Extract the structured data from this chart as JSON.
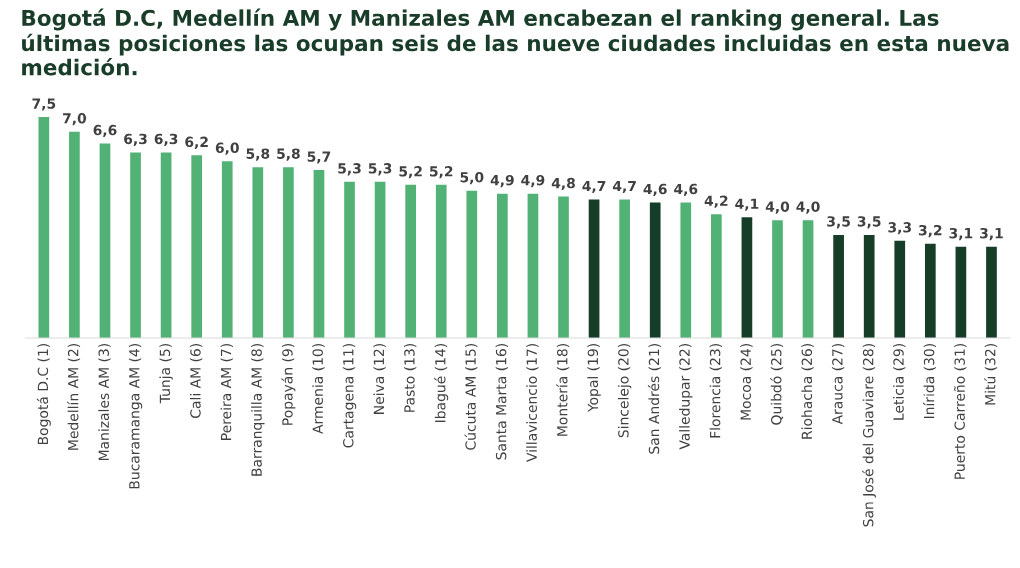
{
  "chart_data": {
    "type": "bar",
    "title": "Bogotá D.C, Medellín AM y Manizales AM encabezan el ranking general. Las últimas posiciones las ocupan seis de las nueve ciudades incluidas en esta nueva medición.",
    "categories": [
      "Bogotá D.C (1)",
      "Medellín AM (2)",
      "Manizales AM (3)",
      "Bucaramanga AM (4)",
      "Tunja (5)",
      "Cali AM (6)",
      "Pereira AM (7)",
      "Barranquilla AM (8)",
      "Popayán (9)",
      "Armenia (10)",
      "Cartagena (11)",
      "Neiva (12)",
      "Pasto (13)",
      "Ibagué (14)",
      "Cúcuta AM (15)",
      "Santa Marta (16)",
      "Villavicencio (17)",
      "Montería (18)",
      "Yopal (19)",
      "Sincelejo (20)",
      "San Andrés (21)",
      "Valledupar (22)",
      "Florencia (23)",
      "Mocoa (24)",
      "Quibdó (25)",
      "Riohacha (26)",
      "Arauca (27)",
      "San José del Guaviare (28)",
      "Leticia (29)",
      "Inírida (30)",
      "Puerto Carreño (31)",
      "Mitú (32)"
    ],
    "values": [
      7.5,
      7.0,
      6.6,
      6.3,
      6.3,
      6.2,
      6.0,
      5.8,
      5.8,
      5.7,
      5.3,
      5.3,
      5.2,
      5.2,
      5.0,
      4.9,
      4.9,
      4.8,
      4.7,
      4.7,
      4.6,
      4.6,
      4.2,
      4.1,
      4.0,
      4.0,
      3.5,
      3.5,
      3.3,
      3.2,
      3.1,
      3.1
    ],
    "value_labels": [
      "7,5",
      "7,0",
      "6,6",
      "6,3",
      "6,3",
      "6,2",
      "6,0",
      "5,8",
      "5,8",
      "5,7",
      "5,3",
      "5,3",
      "5,2",
      "5,2",
      "5,0",
      "4,9",
      "4,9",
      "4,8",
      "4,7",
      "4,7",
      "4,6",
      "4,6",
      "4,2",
      "4,1",
      "4,0",
      "4,0",
      "3,5",
      "3,5",
      "3,3",
      "3,2",
      "3,1",
      "3,1"
    ],
    "colors": [
      "#52b276",
      "#52b276",
      "#52b276",
      "#52b276",
      "#52b276",
      "#52b276",
      "#52b276",
      "#52b276",
      "#52b276",
      "#52b276",
      "#52b276",
      "#52b276",
      "#52b276",
      "#52b276",
      "#52b276",
      "#52b276",
      "#52b276",
      "#52b276",
      "#163d28",
      "#52b276",
      "#163d28",
      "#52b276",
      "#52b276",
      "#163d28",
      "#52b276",
      "#52b276",
      "#163d28",
      "#163d28",
      "#163d28",
      "#163d28",
      "#163d28",
      "#163d28"
    ],
    "grid": false,
    "legend": false
  }
}
